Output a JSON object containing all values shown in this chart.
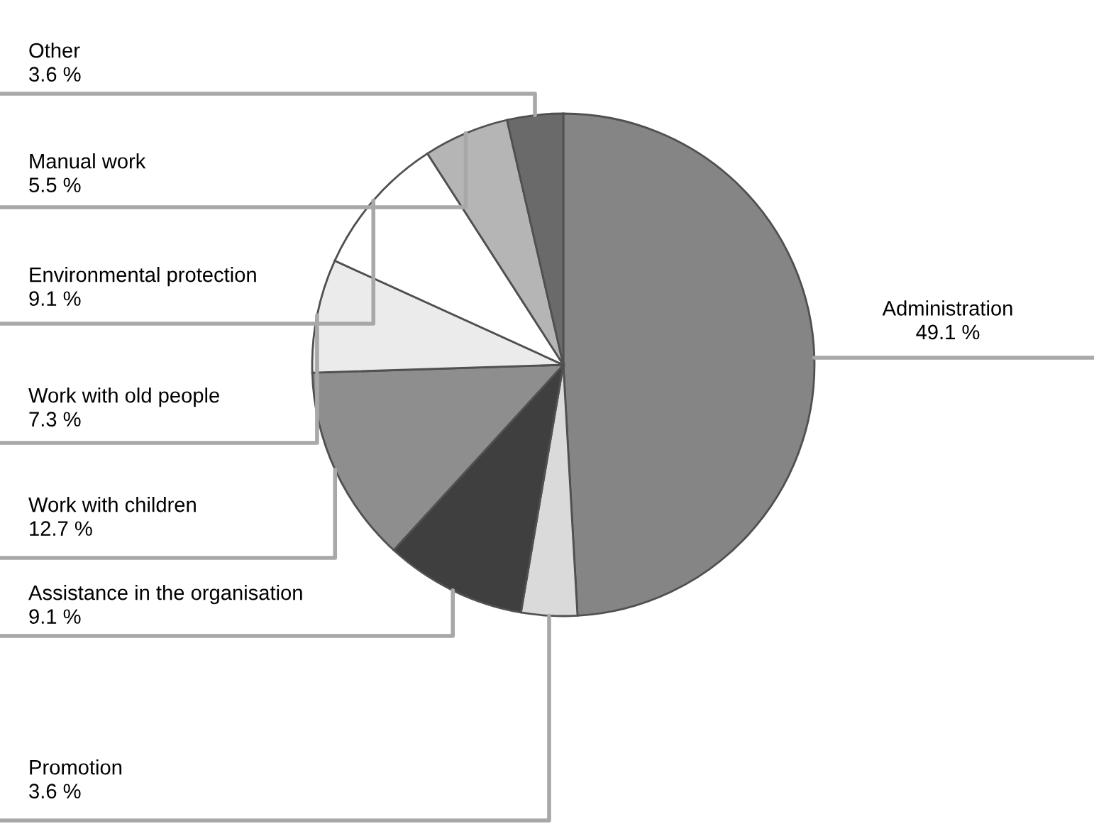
{
  "chart_data": {
    "type": "pie",
    "categories": [
      "Administration",
      "Promotion",
      "Assistance in the organisation",
      "Work with children",
      "Work with old people",
      "Environmental protection",
      "Manual work",
      "Other"
    ],
    "values": [
      49.1,
      3.6,
      9.1,
      12.7,
      7.3,
      9.1,
      5.5,
      3.6
    ],
    "colors": [
      "#858585",
      "#dadada",
      "#3f3f3f",
      "#8e8e8e",
      "#ebebeb",
      "#ffffff",
      "#b5b5b5",
      "#6a6a6a"
    ],
    "value_labels": [
      "49.1 %",
      "3.6 %",
      "9.1 %",
      "12.7 %",
      "7.3 %",
      "9.1 %",
      "5.5 %",
      "3.6 %"
    ]
  }
}
